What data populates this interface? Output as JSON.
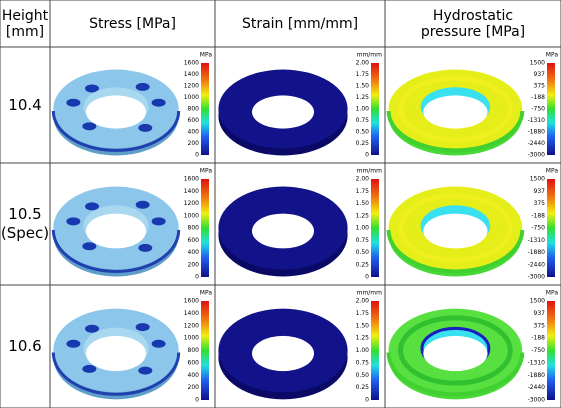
{
  "header": {
    "cells": [
      "Height [mm]",
      "Stress [MPa]",
      "Strain [mm/mm]",
      "Hydrostatic pressure [MPa]"
    ]
  },
  "rows": [
    {
      "height": "10.4"
    },
    {
      "height": "10.5",
      "note": "(Spec)"
    },
    {
      "height": "10.6"
    }
  ],
  "legends": [
    {
      "unit": "MPa",
      "ticks": [
        "1600",
        "1400",
        "1200",
        "1000",
        "800",
        "600",
        "400",
        "200",
        "0"
      ]
    },
    {
      "unit": "mm/mm",
      "ticks": [
        "2.00",
        "1.75",
        "1.50",
        "1.25",
        "1.00",
        "0.75",
        "0.50",
        "0.25",
        "0"
      ]
    },
    {
      "unit": "MPa",
      "ticks": [
        "1500",
        "937",
        "375",
        "-188",
        "-750",
        "-1310",
        "-1880",
        "-2440",
        "-3000"
      ]
    }
  ]
}
